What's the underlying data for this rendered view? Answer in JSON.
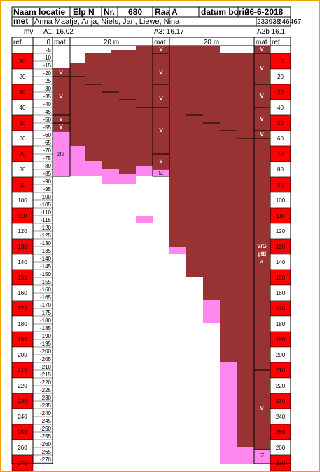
{
  "header": {
    "row1": {
      "naam_locatie_label": "Naam locatie",
      "location_value": "Elp N",
      "nr_label": "Nr.",
      "nr_value": "680",
      "raai_label": "Raa",
      "raai_value": "A",
      "datum_label": "datum borin",
      "datum_value": "26-6-2018"
    },
    "row2": {
      "met_label": "met",
      "names": "Anna Maatje, Anja, Niels, Jan, Liewe, Nina",
      "coord_x": "233938",
      "coord_y": "546467"
    },
    "row3": {
      "mv_label": "mv",
      "a1_label": "A1: 16,02",
      "a3_label": "A3: 16,17",
      "a2b_label": "A2b 16,1"
    }
  },
  "section_headers": {
    "ref_left": "ref.",
    "zero": "0",
    "mat_1": "mat",
    "dist_1": "20 m",
    "mat_2": "mat",
    "dist_2": "20 m",
    "mat_3": "mat",
    "ref_right": "ref."
  },
  "ref_scale": [
    "10",
    "20",
    "30",
    "40",
    "50",
    "60",
    "70",
    "80",
    "90",
    "100",
    "110",
    "120",
    "130",
    "140",
    "150",
    "160",
    "170",
    "180",
    "190",
    "200",
    "210",
    "220",
    "230",
    "240",
    "250",
    "260",
    "270"
  ],
  "depth_scale": [
    "-5",
    "-10",
    "-15",
    "-20",
    "-25",
    "-30",
    "-35",
    "-40",
    "-45",
    "-50",
    "-55",
    "-60",
    "-65",
    "-70",
    "-75",
    "-80",
    "-85",
    "-90",
    "-95",
    "-100",
    "-105",
    "-110",
    "-115",
    "-120",
    "-125",
    "-130",
    "-135",
    "-140",
    "-145",
    "-150",
    "-155",
    "-160",
    "-165",
    "-170",
    "-175",
    "-180",
    "-185",
    "-190",
    "-195",
    "-200",
    "-205",
    "-210",
    "-215",
    "-220",
    "-225",
    "-230",
    "-235",
    "-240",
    "-245",
    "-250",
    "-255",
    "-260",
    "-265",
    "-270"
  ],
  "material_labels": {
    "v": "V",
    "vg": "V/G",
    "gttj": "gttj",
    "a": "a",
    "fz": "fZ",
    "zfz": "zfZ"
  },
  "colors": {
    "peat": "#993333",
    "sand": "#ff88ee",
    "ref_red": "#ff0000",
    "border": "#000000",
    "frame": "#f0a000"
  }
}
